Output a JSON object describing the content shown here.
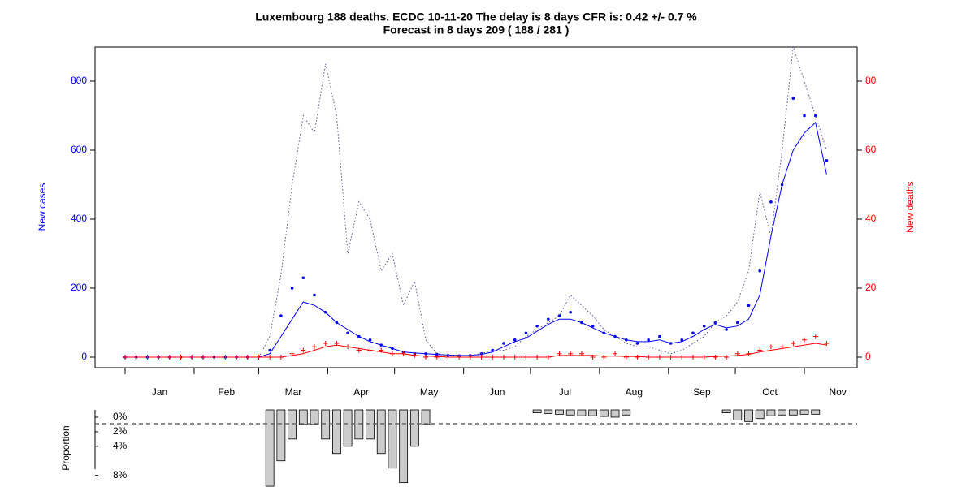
{
  "chart_data": [
    {
      "type": "line",
      "title": "Luxembourg 188 deaths. ECDC 10-11-20 The delay is 8 days CFR is: 0.42 +/- 0.7 %",
      "subtitle": "Forecast in 8 days 209 ( 188 / 281 )",
      "ylabel": "New cases",
      "y2label": "New deaths",
      "xlim": [
        -13.5,
        328.7
      ],
      "xticks": [
        {
          "value": 15.5,
          "label": "Jan"
        },
        {
          "value": 45.5,
          "label": "Feb"
        },
        {
          "value": 75.5,
          "label": "Mar"
        },
        {
          "value": 106,
          "label": "Apr"
        },
        {
          "value": 136.5,
          "label": "May"
        },
        {
          "value": 167,
          "label": "Jun"
        },
        {
          "value": 197.5,
          "label": "Jul"
        },
        {
          "value": 228.5,
          "label": "Aug"
        },
        {
          "value": 259,
          "label": "Sep"
        },
        {
          "value": 289.5,
          "label": "Oct"
        },
        {
          "value": 320,
          "label": "Nov"
        }
      ],
      "xtick_marks": [
        0,
        31,
        60,
        91,
        121,
        152,
        182,
        213,
        244,
        274,
        305
      ],
      "ylim": [
        -30.6,
        898.8
      ],
      "yticks": [
        0,
        200,
        400,
        600,
        800
      ],
      "y2lim": [
        -3.06,
        89.88
      ],
      "y2ticks": [
        0,
        20,
        40,
        60,
        80
      ],
      "y_color": "#0000ff",
      "y2_color": "#ff0000",
      "x": [
        0,
        5,
        10,
        15,
        20,
        25,
        30,
        35,
        40,
        45,
        50,
        55,
        60,
        65,
        70,
        75,
        80,
        85,
        90,
        95,
        100,
        105,
        110,
        115,
        120,
        125,
        130,
        135,
        140,
        145,
        150,
        155,
        160,
        165,
        170,
        175,
        180,
        185,
        190,
        195,
        200,
        205,
        210,
        215,
        220,
        225,
        230,
        235,
        240,
        245,
        250,
        255,
        260,
        265,
        270,
        275,
        280,
        285,
        290,
        295,
        300,
        305,
        310,
        315
      ],
      "series": [
        {
          "name": "cases",
          "style": "points",
          "marker": "dot",
          "color": "#0000ff",
          "axis": "y",
          "values": [
            0,
            0,
            0,
            0,
            0,
            0,
            0,
            0,
            0,
            0,
            0,
            0,
            2,
            20,
            120,
            200,
            230,
            180,
            130,
            100,
            70,
            60,
            50,
            35,
            25,
            15,
            10,
            10,
            8,
            5,
            4,
            5,
            10,
            20,
            40,
            50,
            70,
            90,
            110,
            120,
            130,
            100,
            90,
            70,
            60,
            50,
            40,
            50,
            60,
            40,
            50,
            70,
            90,
            100,
            80,
            100,
            150,
            250,
            450,
            500,
            750,
            700,
            700,
            570
          ]
        },
        {
          "name": "cases smoothed",
          "style": "solid",
          "color": "#0000ff",
          "axis": "y",
          "values": [
            0,
            0,
            0,
            0,
            0,
            0,
            0,
            0,
            0,
            0,
            0,
            0,
            0,
            10,
            60,
            110,
            160,
            150,
            130,
            100,
            80,
            60,
            45,
            35,
            25,
            15,
            12,
            10,
            8,
            6,
            5,
            5,
            8,
            15,
            30,
            45,
            55,
            75,
            95,
            110,
            110,
            100,
            85,
            70,
            60,
            50,
            45,
            45,
            50,
            40,
            45,
            60,
            80,
            95,
            85,
            90,
            110,
            180,
            350,
            500,
            600,
            650,
            680,
            530
          ]
        },
        {
          "name": "forecast",
          "style": "dotted",
          "color": "#555599",
          "axis": "y",
          "values": [
            0,
            0,
            0,
            0,
            0,
            0,
            0,
            0,
            0,
            0,
            0,
            0,
            0,
            60,
            240,
            500,
            700,
            650,
            850,
            700,
            300,
            450,
            400,
            250,
            300,
            150,
            220,
            50,
            10,
            5,
            5,
            5,
            10,
            20,
            20,
            30,
            60,
            80,
            100,
            120,
            180,
            150,
            120,
            80,
            60,
            40,
            30,
            30,
            20,
            10,
            20,
            40,
            60,
            100,
            120,
            160,
            250,
            480,
            350,
            600,
            900,
            800,
            700,
            600
          ]
        },
        {
          "name": "deaths",
          "style": "points",
          "marker": "plus",
          "color": "#ff0000",
          "axis": "y2",
          "values": [
            0,
            0,
            0,
            0,
            0,
            0,
            0,
            0,
            0,
            0,
            0,
            0,
            0,
            0,
            0,
            1,
            2,
            3,
            4,
            4,
            3,
            2,
            2,
            2,
            1,
            1,
            0.5,
            0,
            0,
            0,
            0,
            0,
            0,
            0,
            0,
            0,
            0,
            0,
            0,
            1,
            1,
            1,
            0,
            0,
            1,
            0,
            0,
            0,
            0,
            0,
            0,
            0,
            0,
            0,
            0,
            1,
            1,
            2,
            3,
            3,
            4,
            5,
            6,
            4
          ]
        },
        {
          "name": "deaths smoothed",
          "style": "solid",
          "color": "#ff0000",
          "axis": "y2",
          "values": [
            0,
            0,
            0,
            0,
            0,
            0,
            0,
            0,
            0,
            0,
            0,
            0,
            0,
            0,
            0,
            0.5,
            1,
            2,
            3,
            3.5,
            3,
            2.5,
            2,
            1.5,
            1,
            1,
            0.5,
            0.3,
            0.2,
            0,
            0,
            0,
            0,
            0,
            0,
            0,
            0,
            0,
            0,
            0.5,
            0.5,
            0.5,
            0.5,
            0.3,
            0.3,
            0.2,
            0.2,
            0,
            0,
            0,
            0,
            0,
            0,
            0.2,
            0.3,
            0.5,
            0.8,
            1.5,
            2,
            2.5,
            3,
            3.5,
            4,
            3.5
          ]
        }
      ]
    },
    {
      "type": "bar",
      "ylabel": "Proportion",
      "xlim": [
        -13.5,
        328.7
      ],
      "ylim": [
        -1,
        9.6
      ],
      "yticks": [
        {
          "value": 0,
          "label": "0%"
        },
        {
          "value": 2,
          "label": "2%"
        },
        {
          "value": 4,
          "label": "4%"
        },
        {
          "value": 8,
          "label": "8%"
        }
      ],
      "hline": 0.9,
      "color": "#cccccc",
      "x": [
        0,
        5,
        10,
        15,
        20,
        25,
        30,
        35,
        40,
        45,
        50,
        55,
        60,
        65,
        70,
        75,
        80,
        85,
        90,
        95,
        100,
        105,
        110,
        115,
        120,
        125,
        130,
        135,
        140,
        145,
        150,
        155,
        160,
        165,
        170,
        175,
        180,
        185,
        190,
        195,
        200,
        205,
        210,
        215,
        220,
        225,
        230,
        235,
        240,
        245,
        250,
        255,
        260,
        265,
        270,
        275,
        280,
        285,
        290,
        295,
        300,
        305,
        310,
        315
      ],
      "values": [
        null,
        null,
        null,
        null,
        null,
        null,
        null,
        null,
        null,
        null,
        null,
        null,
        null,
        9.5,
        6,
        3,
        1,
        1,
        3,
        5,
        4,
        3,
        3,
        5,
        7,
        9,
        4,
        1,
        null,
        null,
        null,
        null,
        null,
        null,
        null,
        null,
        null,
        -0.6,
        -0.5,
        -0.4,
        -0.3,
        -0.2,
        -0.2,
        -0.1,
        0,
        -0.3,
        null,
        null,
        null,
        null,
        null,
        null,
        null,
        null,
        -0.6,
        0.4,
        0.6,
        0.2,
        -0.2,
        -0.3,
        -0.3,
        -0.4,
        -0.4,
        null
      ]
    }
  ]
}
